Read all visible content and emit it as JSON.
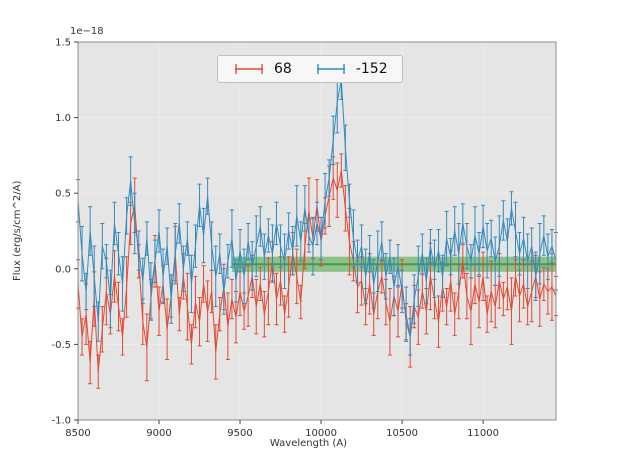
{
  "figure": {
    "background": "#ffffff",
    "axes_background": "#e5e5e5",
    "frame_color": "#8c8c8c",
    "tick_color": "#444444",
    "tick_label_color": "#333333"
  },
  "chart_data": {
    "type": "line",
    "title": "",
    "xlabel": "Wavelength (A)",
    "ylabel": "Flux (erg/s/cm^2/A)",
    "y_offset_factor": "1e−18",
    "xlim": [
      8500,
      11450
    ],
    "ylim": [
      -1.0,
      1.5
    ],
    "xticks": [
      8500,
      9000,
      9500,
      10000,
      10500,
      11000
    ],
    "xtick_labels": [
      "8500",
      "9000",
      "9500",
      "10000",
      "10500",
      "11000"
    ],
    "yticks": [
      -1.0,
      -0.5,
      0.0,
      0.5,
      1.0,
      1.5
    ],
    "ytick_labels": [
      "-1.0",
      "-0.5",
      "0.0",
      "0.5",
      "1.0",
      "1.5"
    ],
    "grid": false,
    "legend_position": "upper center",
    "band": {
      "x0": 9450,
      "x1": 11450,
      "y0": -0.02,
      "y1": 0.08,
      "color": "#33a02c",
      "alpha": 0.5,
      "center_line_y": 0.03,
      "center_line_color": "#2d8a2d"
    },
    "x_start": 8500,
    "x_step": 25,
    "series": [
      {
        "name": "68",
        "color": "#e24a33",
        "yerr_pattern": [
          0.16,
          0.12,
          0.2,
          0.14,
          0.18,
          0.11,
          0.15,
          0.22,
          0.13,
          0.17
        ],
        "values": [
          -0.1,
          -0.45,
          -0.3,
          -0.62,
          -0.2,
          -0.68,
          -0.4,
          -0.15,
          -0.3,
          -0.05,
          -0.25,
          -0.45,
          -0.12,
          0.3,
          0.42,
          0.05,
          -0.35,
          -0.52,
          -0.2,
          0.05,
          -0.28,
          -0.1,
          -0.4,
          -0.18,
          0.1,
          -0.3,
          -0.05,
          -0.25,
          -0.5,
          -0.22,
          -0.35,
          -0.1,
          -0.28,
          -0.15,
          -0.55,
          -0.3,
          -0.12,
          -0.38,
          -0.2,
          -0.32,
          -0.15,
          -0.28,
          -0.18,
          -0.05,
          -0.25,
          -0.1,
          -0.3,
          -0.15,
          0.05,
          -0.2,
          -0.08,
          -0.3,
          -0.12,
          0.1,
          -0.05,
          -0.22,
          0.15,
          0.38,
          0.2,
          0.42,
          0.18,
          0.35,
          0.48,
          0.6,
          0.52,
          0.65,
          0.4,
          0.18,
          0.05,
          -0.12,
          -0.08,
          -0.25,
          -0.1,
          -0.3,
          -0.15,
          -0.05,
          -0.22,
          -0.35,
          -0.18,
          -0.28,
          -0.1,
          -0.35,
          -0.45,
          -0.25,
          -0.32,
          -0.15,
          -0.28,
          -0.05,
          -0.2,
          -0.35,
          -0.12,
          -0.25,
          -0.08,
          -0.3,
          -0.15,
          0.05,
          -0.18,
          -0.28,
          -0.1,
          -0.22,
          -0.05,
          -0.3,
          -0.15,
          -0.25,
          -0.08,
          -0.2,
          -0.12,
          -0.28,
          -0.05,
          -0.18,
          -0.1,
          -0.25,
          -0.15,
          -0.05,
          -0.2,
          -0.1,
          -0.15,
          -0.12,
          -0.18
        ]
      },
      {
        "name": "-152",
        "color": "#348abd",
        "yerr_pattern": [
          0.14,
          0.18,
          0.12,
          0.16,
          0.2,
          0.13,
          0.15,
          0.11,
          0.19,
          0.14
        ],
        "values": [
          0.45,
          0.1,
          -0.15,
          0.25,
          -0.05,
          -0.35,
          0.15,
          0.05,
          -0.2,
          0.3,
          0.1,
          -0.1,
          0.35,
          0.58,
          0.3,
          0.12,
          -0.08,
          0.2,
          -0.15,
          0.05,
          0.25,
          -0.05,
          0.15,
          -0.2,
          0.1,
          0.3,
          0.0,
          0.2,
          -0.1,
          0.15,
          0.42,
          0.22,
          0.48,
          0.15,
          -0.05,
          0.1,
          -0.15,
          0.05,
          0.2,
          -0.08,
          0.12,
          -0.05,
          0.18,
          0.02,
          0.15,
          0.28,
          0.08,
          0.22,
          0.1,
          0.3,
          0.15,
          0.05,
          0.25,
          0.12,
          0.35,
          0.18,
          0.4,
          0.22,
          0.15,
          0.3,
          0.2,
          0.45,
          0.6,
          0.85,
          1.1,
          1.25,
          0.8,
          0.45,
          0.2,
          0.05,
          0.15,
          -0.05,
          0.1,
          -0.1,
          0.05,
          0.18,
          -0.05,
          0.08,
          -0.12,
          0.02,
          -0.15,
          -0.3,
          -0.45,
          -0.2,
          -0.05,
          0.1,
          -0.08,
          0.15,
          0.0,
          0.12,
          -0.05,
          0.2,
          0.08,
          0.25,
          0.1,
          0.3,
          0.15,
          0.05,
          0.22,
          0.1,
          0.28,
          0.12,
          0.2,
          0.05,
          0.15,
          0.32,
          0.18,
          0.4,
          0.25,
          0.1,
          0.2,
          0.05,
          0.15,
          -0.05,
          0.1,
          0.22,
          0.08,
          0.15,
          0.05
        ]
      }
    ]
  }
}
